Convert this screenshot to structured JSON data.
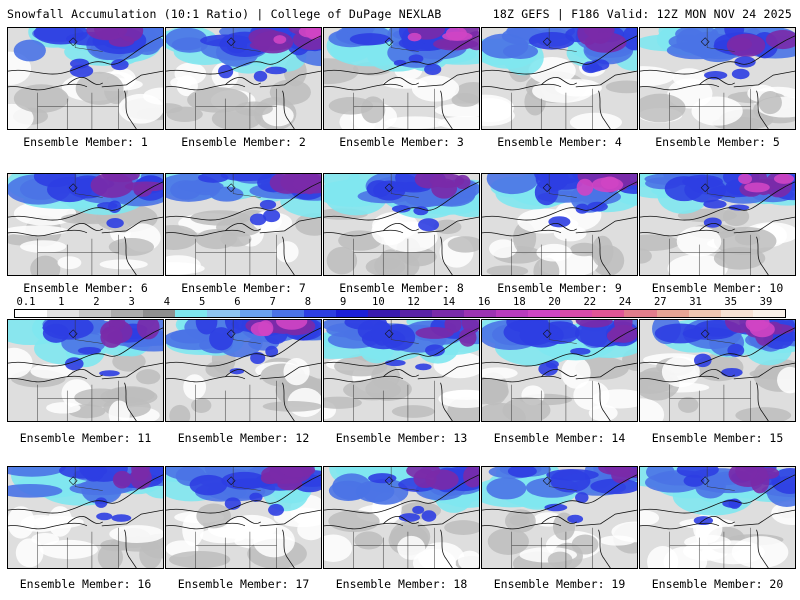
{
  "header": {
    "title_left": "Snowfall Accumulation (10:1 Ratio) | College of DuPage NEXLAB",
    "title_right": "18Z GEFS | F186 Valid: 12Z MON NOV 24 2025"
  },
  "panels": [
    {
      "label": "Ensemble Member: 1",
      "intensity": 0.55
    },
    {
      "label": "Ensemble Member: 2",
      "intensity": 0.8
    },
    {
      "label": "Ensemble Member: 3",
      "intensity": 0.85
    },
    {
      "label": "Ensemble Member: 4",
      "intensity": 0.5
    },
    {
      "label": "Ensemble Member: 5",
      "intensity": 0.4
    },
    {
      "label": "Ensemble Member: 6",
      "intensity": 0.6
    },
    {
      "label": "Ensemble Member: 7",
      "intensity": 0.55
    },
    {
      "label": "Ensemble Member: 8",
      "intensity": 0.6
    },
    {
      "label": "Ensemble Member: 9",
      "intensity": 0.75
    },
    {
      "label": "Ensemble Member: 10",
      "intensity": 0.8
    },
    {
      "label": "Ensemble Member: 11",
      "intensity": 0.5
    },
    {
      "label": "Ensemble Member: 12",
      "intensity": 0.95
    },
    {
      "label": "Ensemble Member: 13",
      "intensity": 0.6
    },
    {
      "label": "Ensemble Member: 14",
      "intensity": 0.6
    },
    {
      "label": "Ensemble Member: 15",
      "intensity": 0.75
    },
    {
      "label": "Ensemble Member: 16",
      "intensity": 0.45
    },
    {
      "label": "Ensemble Member: 17",
      "intensity": 0.7
    },
    {
      "label": "Ensemble Member: 18",
      "intensity": 0.65
    },
    {
      "label": "Ensemble Member: 19",
      "intensity": 0.55
    },
    {
      "label": "Ensemble Member: 20",
      "intensity": 0.6
    }
  ],
  "legend": {
    "labels": [
      "0.1",
      "1",
      "2",
      "3",
      "4",
      "5",
      "6",
      "7",
      "8",
      "9",
      "10",
      "12",
      "14",
      "16",
      "18",
      "20",
      "22",
      "24",
      "27",
      "31",
      "35",
      "39"
    ],
    "colors": [
      "#ffffff",
      "#e2e2e2",
      "#c8c8c8",
      "#acacac",
      "#8f8f8f",
      "#7fe7ef",
      "#8ec5f0",
      "#6aa2ee",
      "#4a73e6",
      "#2d3ee2",
      "#1c1fd8",
      "#3a1ab0",
      "#5a22a6",
      "#7a2aa9",
      "#9c33b2",
      "#b93bbd",
      "#cf45c4",
      "#d94aaa",
      "#e05596",
      "#e27d8c",
      "#e7a596",
      "#f0c7b2",
      "#f7e2d4",
      "#fbf2ea"
    ]
  }
}
